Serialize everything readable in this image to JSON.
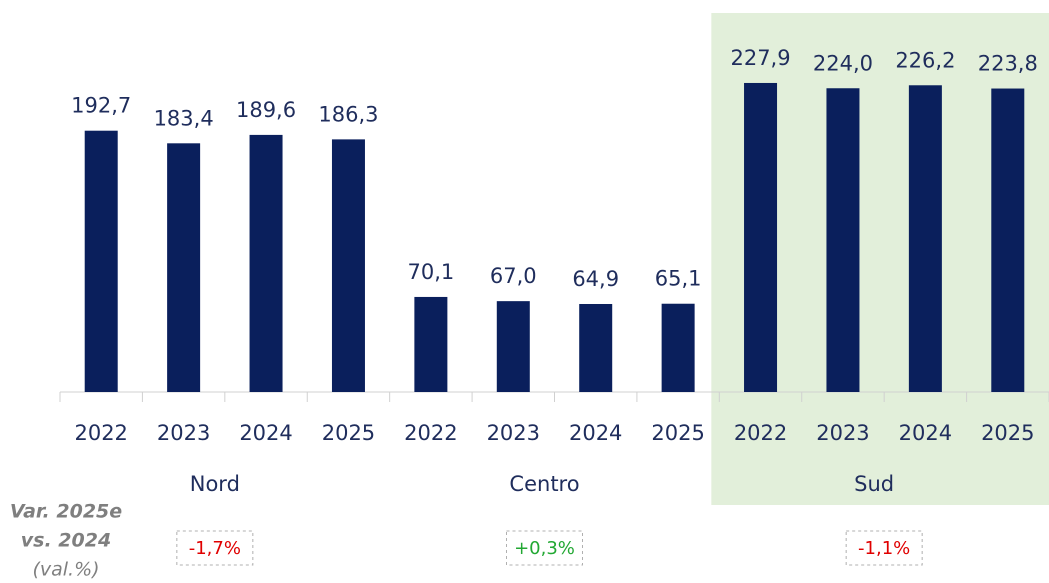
{
  "chart_data": {
    "type": "bar",
    "categories": [
      "2022",
      "2023",
      "2024",
      "2025",
      "2022",
      "2023",
      "2024",
      "2025",
      "2022",
      "2023",
      "2024",
      "2025"
    ],
    "groups": [
      "Nord",
      "Centro",
      "Sud"
    ],
    "values": [
      192.7,
      183.4,
      189.6,
      186.3,
      70.1,
      67.0,
      64.9,
      65.1,
      227.9,
      224.0,
      226.2,
      223.8
    ],
    "value_labels": [
      "192,7",
      "183,4",
      "189,6",
      "186,3",
      "70,1",
      "67,0",
      "64,9",
      "65,1",
      "227,9",
      "224,0",
      "226,2",
      "223,8"
    ],
    "color": "#0a1f5c",
    "ylim": [
      0,
      250
    ],
    "highlight_group": 2,
    "highlight_color": "#e2efda",
    "annotation": [
      "Var. 2025e",
      "vs. 2024",
      "(val.%)"
    ],
    "variations": [
      {
        "label": "-1,7%",
        "color": "#e00000"
      },
      {
        "label": "+0,3%",
        "color": "#22a833"
      },
      {
        "label": "-1,1%",
        "color": "#e00000"
      }
    ]
  }
}
